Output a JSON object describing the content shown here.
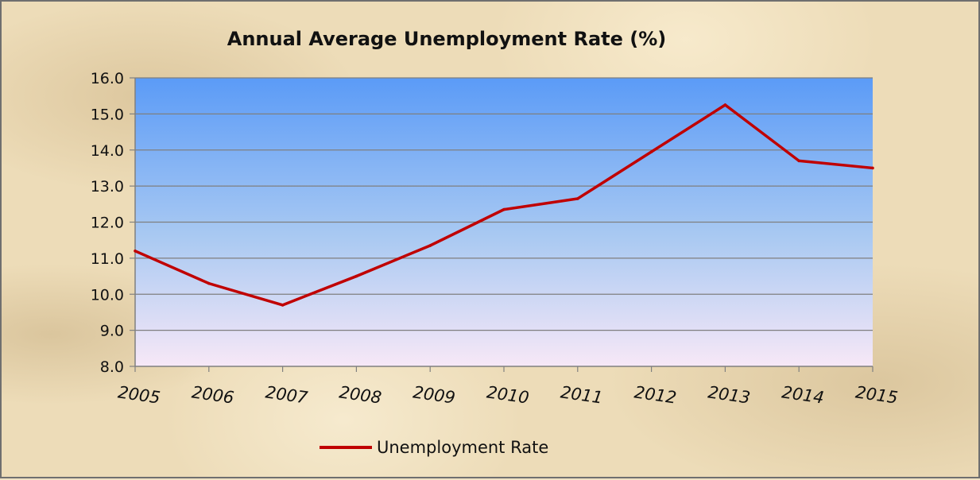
{
  "chart_data": {
    "type": "line",
    "title": "Annual Average Unemployment Rate (%)",
    "xlabel": "",
    "ylabel": "",
    "categories": [
      "2005",
      "2006",
      "2007",
      "2008",
      "2009",
      "2010",
      "2011",
      "2012",
      "2013",
      "2014",
      "2015"
    ],
    "y_ticks": [
      "8.0",
      "9.0",
      "10.0",
      "11.0",
      "12.0",
      "13.0",
      "14.0",
      "15.0",
      "16.0"
    ],
    "ylim": [
      8.0,
      16.0
    ],
    "grid": true,
    "legend_position": "bottom",
    "series": [
      {
        "name": "Unemployment Rate",
        "color": "#c00000",
        "values": [
          11.2,
          10.3,
          9.7,
          10.5,
          11.35,
          12.35,
          12.65,
          13.95,
          15.25,
          13.7,
          13.5
        ]
      }
    ],
    "colors": {
      "plot_top": "#5b9bf7",
      "plot_bottom": "#f7e8f7",
      "gridline": "#7f7f7f",
      "axis": "#808080"
    }
  }
}
